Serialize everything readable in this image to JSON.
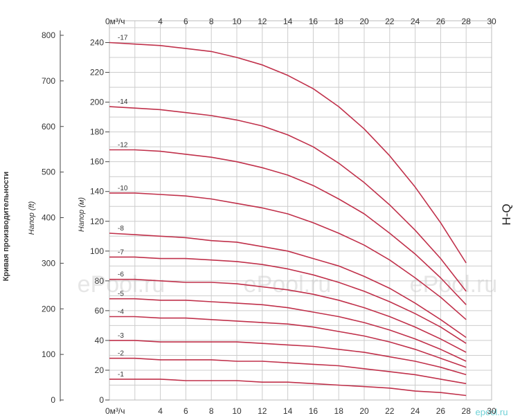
{
  "chart_data": {
    "type": "line",
    "title": "H-Q",
    "side_title": "Кривая производительности",
    "x_unit_label": "0м³/ч",
    "xlim": [
      0,
      30
    ],
    "x_ticks": [
      0,
      4,
      6,
      8,
      10,
      12,
      14,
      16,
      18,
      20,
      22,
      24,
      26,
      28,
      30
    ],
    "left_axis_label": "Напор (ft)",
    "left_ylim": [
      0,
      800
    ],
    "left_ticks": [
      0,
      100,
      200,
      300,
      400,
      500,
      600,
      700,
      800
    ],
    "ylabel": "Напор (м)",
    "ylim": [
      0,
      250
    ],
    "y_ticks": [
      0,
      20,
      40,
      60,
      80,
      100,
      120,
      140,
      160,
      180,
      200,
      220,
      240
    ],
    "grid": true,
    "line_color": "#c0304a",
    "x": [
      0,
      2,
      4,
      6,
      8,
      10,
      12,
      14,
      16,
      18,
      20,
      22,
      24,
      26,
      28
    ],
    "series": [
      {
        "name": "-17",
        "values": [
          240,
          239,
          238,
          236,
          234,
          230,
          225,
          218,
          209,
          197,
          182,
          164,
          143,
          119,
          92
        ]
      },
      {
        "name": "-14",
        "values": [
          197,
          196,
          195,
          193,
          191,
          188,
          184,
          178,
          170,
          159,
          146,
          131,
          114,
          95,
          73
        ]
      },
      {
        "name": "-12",
        "values": [
          168,
          168,
          167,
          165,
          163,
          160,
          156,
          151,
          144,
          135,
          125,
          112,
          98,
          82,
          64
        ]
      },
      {
        "name": "-10",
        "values": [
          139,
          139,
          138,
          137,
          135,
          132,
          129,
          125,
          119,
          112,
          104,
          94,
          82,
          69,
          54
        ]
      },
      {
        "name": "-8",
        "values": [
          112,
          111,
          110,
          109,
          107,
          106,
          103,
          100,
          95,
          90,
          83,
          75,
          65,
          54,
          42
        ]
      },
      {
        "name": "-7",
        "values": [
          96,
          96,
          95,
          95,
          94,
          93,
          91,
          88,
          84,
          79,
          73,
          66,
          58,
          49,
          38
        ]
      },
      {
        "name": "-6",
        "values": [
          81,
          81,
          80,
          79,
          79,
          78,
          76,
          74,
          71,
          67,
          62,
          56,
          49,
          41,
          32
        ]
      },
      {
        "name": "-5",
        "values": [
          68,
          68,
          67,
          67,
          66,
          65,
          64,
          62,
          59,
          56,
          52,
          47,
          41,
          34,
          26
        ]
      },
      {
        "name": "-4",
        "values": [
          56,
          56,
          55,
          55,
          54,
          53,
          52,
          51,
          49,
          46,
          43,
          39,
          34,
          28,
          22
        ]
      },
      {
        "name": "-3",
        "values": [
          40,
          40,
          39,
          39,
          39,
          39,
          38,
          37,
          36,
          34,
          32,
          29,
          26,
          22,
          17
        ]
      },
      {
        "name": "-2",
        "values": [
          28,
          28,
          27,
          27,
          27,
          26,
          26,
          25,
          24,
          23,
          21,
          19,
          17,
          14,
          11
        ]
      },
      {
        "name": "-1",
        "values": [
          14,
          14,
          14,
          13,
          13,
          13,
          12,
          12,
          11,
          10,
          9,
          8,
          6,
          5,
          3
        ]
      }
    ]
  },
  "watermarks": [
    "ePool.ru",
    "ePool.ru",
    "ePool.ru",
    "epool.ru"
  ]
}
